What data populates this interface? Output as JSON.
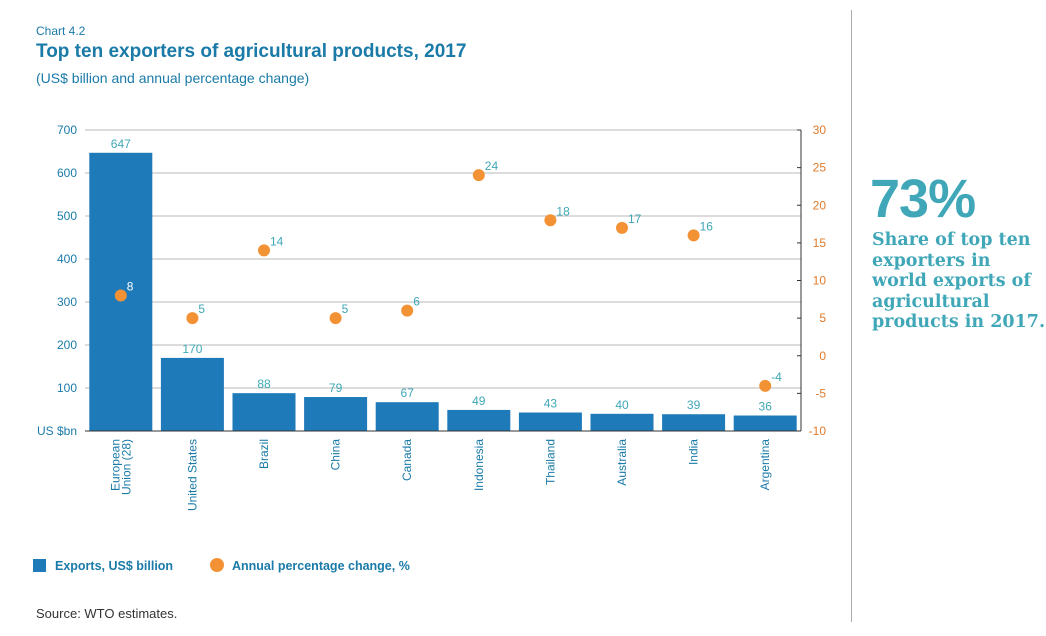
{
  "header": {
    "chart_label": "Chart 4.2",
    "title": "Top ten exporters of agricultural products, 2017",
    "subtitle": "(US$ billion and annual percentage change)"
  },
  "side_panel": {
    "stat": "73%",
    "text": "Share of top ten exporters in world exports of agricultural products in 2017."
  },
  "legend": {
    "bars_label": "Exports, US$ billion",
    "dots_label": "Annual percentage change, %"
  },
  "source": "Source: WTO estimates.",
  "colors": {
    "bar": "#1f7ab9",
    "dot": "#f39235",
    "text_teal": "#3fa7b7",
    "left_axis": "#1a7aa8",
    "right_axis": "#e07b2a"
  },
  "chart_data": {
    "type": "bar",
    "categories": [
      "European Union (28)",
      "United States",
      "Brazil",
      "China",
      "Canada",
      "Indonesia",
      "Thailand",
      "Australia",
      "India",
      "Argentina"
    ],
    "series": [
      {
        "name": "Exports, US$ billion",
        "type": "bar",
        "axis": "left",
        "values": [
          647,
          170,
          88,
          79,
          67,
          49,
          43,
          40,
          39,
          36
        ]
      },
      {
        "name": "Annual percentage change, %",
        "type": "scatter",
        "axis": "right",
        "values": [
          8,
          5,
          14,
          5,
          6,
          24,
          18,
          17,
          16,
          -4
        ]
      }
    ],
    "yleft": {
      "ticks": [
        700,
        600,
        500,
        400,
        300,
        200,
        100
      ],
      "unit_label": "US $bn",
      "ylim": [
        0,
        700
      ]
    },
    "yright": {
      "ticks": [
        30,
        25,
        20,
        15,
        10,
        5,
        0,
        -5,
        -10
      ],
      "ylim": [
        -10,
        30
      ]
    },
    "grid": true,
    "legend_position": "bottom-left"
  }
}
